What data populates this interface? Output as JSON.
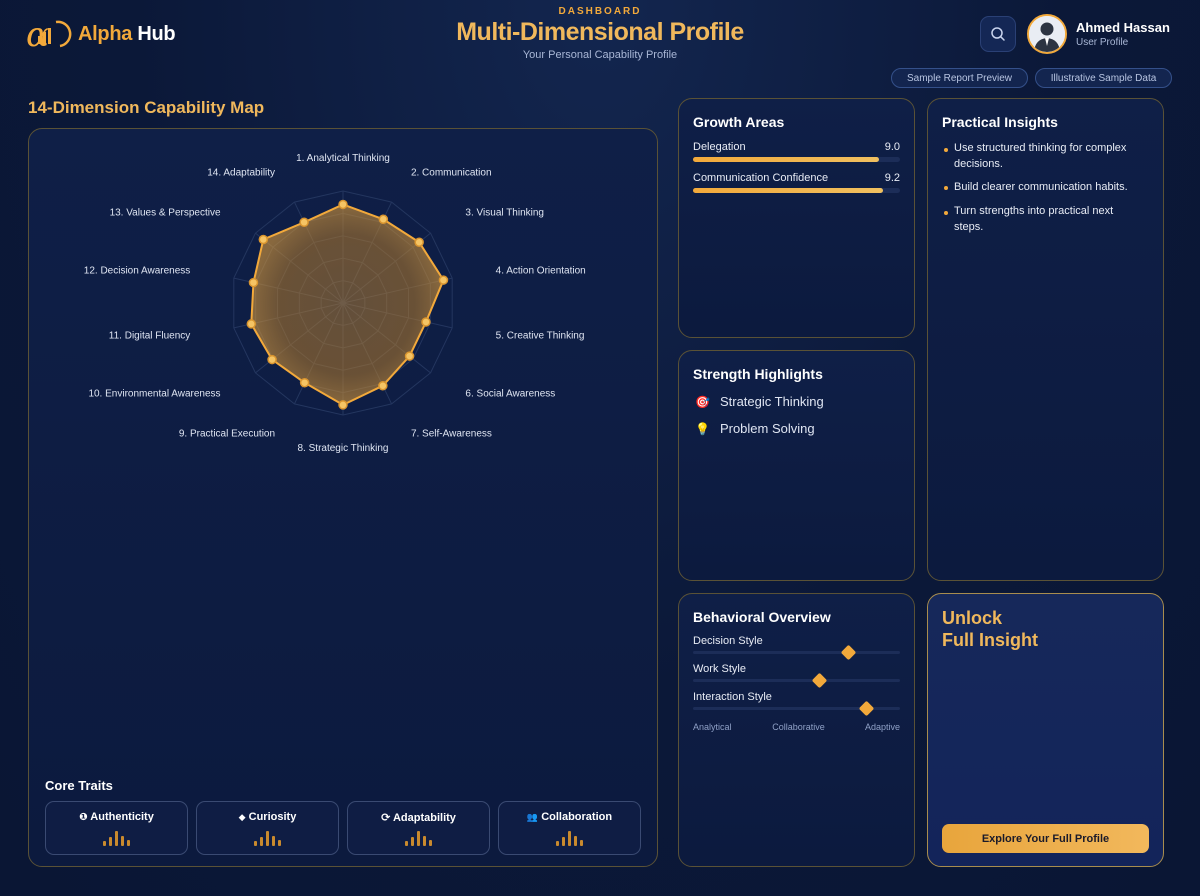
{
  "brand": {
    "name_part1": "Alpha",
    "name_part2": "Hub"
  },
  "header": {
    "eyebrow": "DASHBOARD",
    "title": "Multi-Dimensional Profile",
    "subtitle": "Your Personal Capability Profile"
  },
  "user": {
    "name": "Ahmed Hassan",
    "role": "User Profile"
  },
  "pills": [
    "Sample Report Preview",
    "Illustrative Sample Data"
  ],
  "capability_map": {
    "title": "14-Dimension Capability Map",
    "dimensions": [
      "1. Analytical Thinking",
      "2. Communication",
      "3. Visual Thinking",
      "4. Action Orientation",
      "5. Creative Thinking",
      "6. Social Awareness",
      "7. Self-Awareness",
      "8. Strategic Thinking",
      "9. Practical Execution",
      "10. Environmental Awareness",
      "11. Digital Fluency",
      "12. Decision Awareness",
      "13. Values & Perspective",
      "14. Adaptability"
    ]
  },
  "chart_data": {
    "type": "radar",
    "categories": [
      "1. Analytical Thinking",
      "2. Communication",
      "3. Visual Thinking",
      "4. Action Orientation",
      "5. Creative Thinking",
      "6. Social Awareness",
      "7. Self-Awareness",
      "8. Strategic Thinking",
      "9. Practical Execution",
      "10. Environmental Awareness",
      "11. Digital Fluency",
      "12. Decision Awareness",
      "13. Values & Perspective",
      "14. Adaptability"
    ],
    "values": [
      0.88,
      0.83,
      0.87,
      0.92,
      0.76,
      0.76,
      0.82,
      0.91,
      0.79,
      0.81,
      0.84,
      0.82,
      0.91,
      0.8
    ],
    "rings": 5,
    "accent": "#f2a93b"
  },
  "core_traits": {
    "title": "Core Traits",
    "items": [
      {
        "label": "Authenticity",
        "icon": "info-circle-icon",
        "glyph": "❶"
      },
      {
        "label": "Curiosity",
        "icon": "diamond-icon",
        "glyph": "◆"
      },
      {
        "label": "Adaptability",
        "icon": "refresh-icon",
        "glyph": "⟳"
      },
      {
        "label": "Collaboration",
        "icon": "people-icon",
        "glyph": "👥"
      }
    ]
  },
  "growth": {
    "title": "Growth Areas",
    "items": [
      {
        "label": "Delegation",
        "value": "9.0",
        "fraction": 0.9
      },
      {
        "label": "Communication Confidence",
        "value": "9.2",
        "fraction": 0.92
      }
    ]
  },
  "strengths": {
    "title": "Strength Highlights",
    "items": [
      {
        "label": "Strategic Thinking",
        "icon": "target-icon",
        "glyph": "🎯"
      },
      {
        "label": "Problem Solving",
        "icon": "lightbulb-icon",
        "glyph": "💡"
      }
    ]
  },
  "insights": {
    "title": "Practical Insights",
    "items": [
      "Use structured thinking for complex decisions.",
      "Build clearer communication habits.",
      "Turn strengths into practical next steps."
    ]
  },
  "behavior": {
    "title": "Behavioral Overview",
    "items": [
      {
        "label": "Decision Style",
        "position": 0.75
      },
      {
        "label": "Work Style",
        "position": 0.61
      },
      {
        "label": "Interaction Style",
        "position": 0.84
      }
    ],
    "axis": [
      "Analytical",
      "Collaborative",
      "Adaptive"
    ]
  },
  "unlock": {
    "title_line1": "Unlock",
    "title_line2": "Full Insight",
    "cta": "Explore Your Full Profile"
  }
}
